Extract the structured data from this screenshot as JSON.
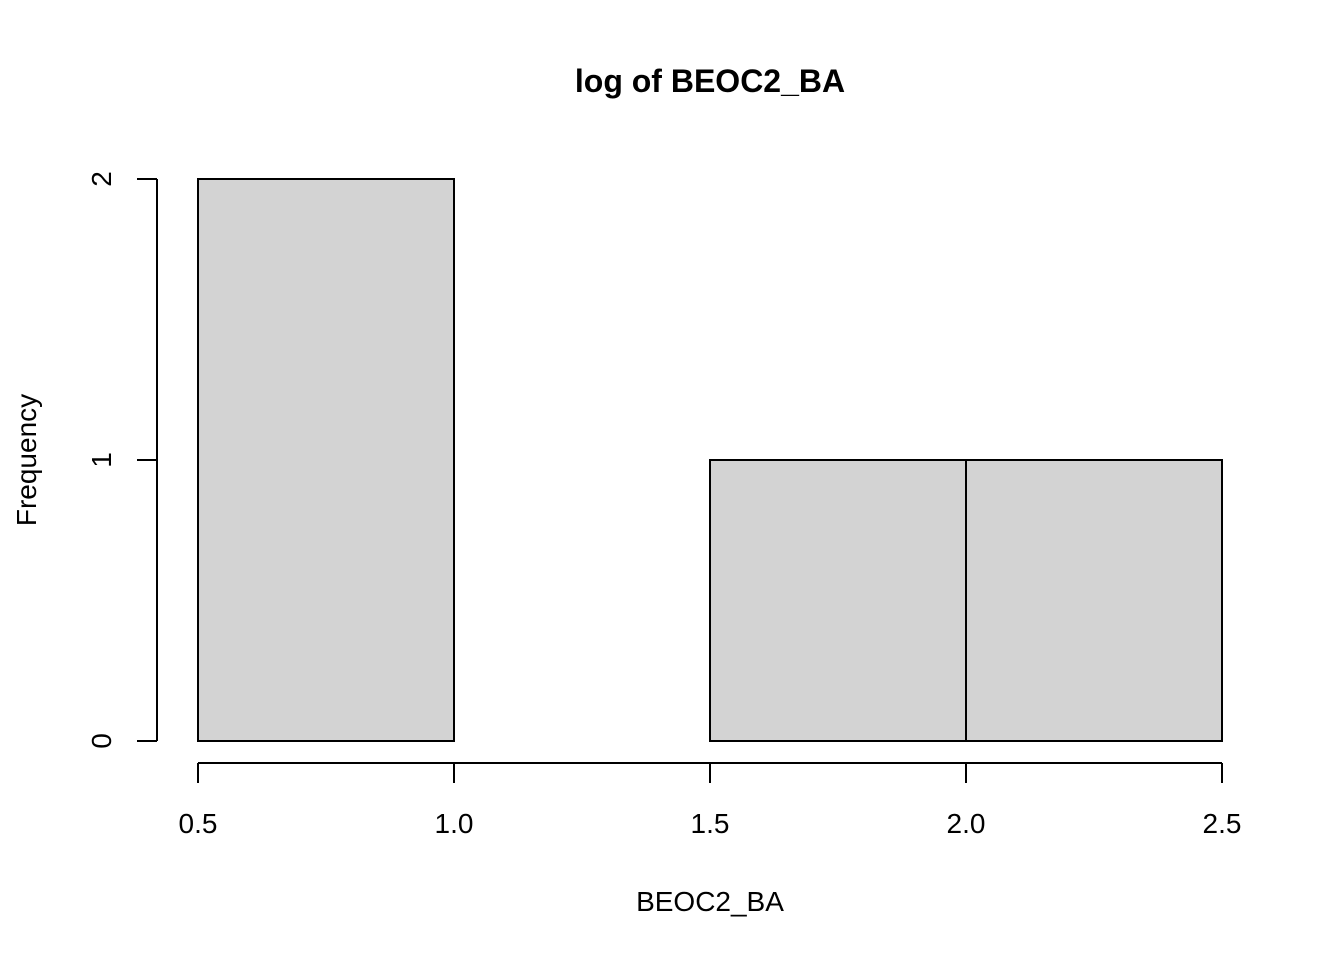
{
  "chart_data": {
    "type": "bar",
    "title": "log of BEOC2_BA",
    "xlabel": "BEOC2_BA",
    "ylabel": "Frequency",
    "bins": [
      {
        "start": 0.5,
        "end": 1.0,
        "count": 2
      },
      {
        "start": 1.0,
        "end": 1.5,
        "count": 0
      },
      {
        "start": 1.5,
        "end": 2.0,
        "count": 1
      },
      {
        "start": 2.0,
        "end": 2.5,
        "count": 1
      }
    ],
    "xlim": [
      0.5,
      2.5
    ],
    "ylim": [
      0,
      2
    ],
    "x_ticks": [
      0.5,
      1.0,
      1.5,
      2.0,
      2.5
    ],
    "x_tick_labels": [
      "0.5",
      "1.0",
      "1.5",
      "2.0",
      "2.5"
    ],
    "y_ticks": [
      0,
      1,
      2
    ],
    "y_tick_labels": [
      "0",
      "1",
      "2"
    ],
    "bar_fill": "#d3d3d3",
    "bar_stroke": "#000000",
    "grid": false,
    "legend": "none"
  }
}
